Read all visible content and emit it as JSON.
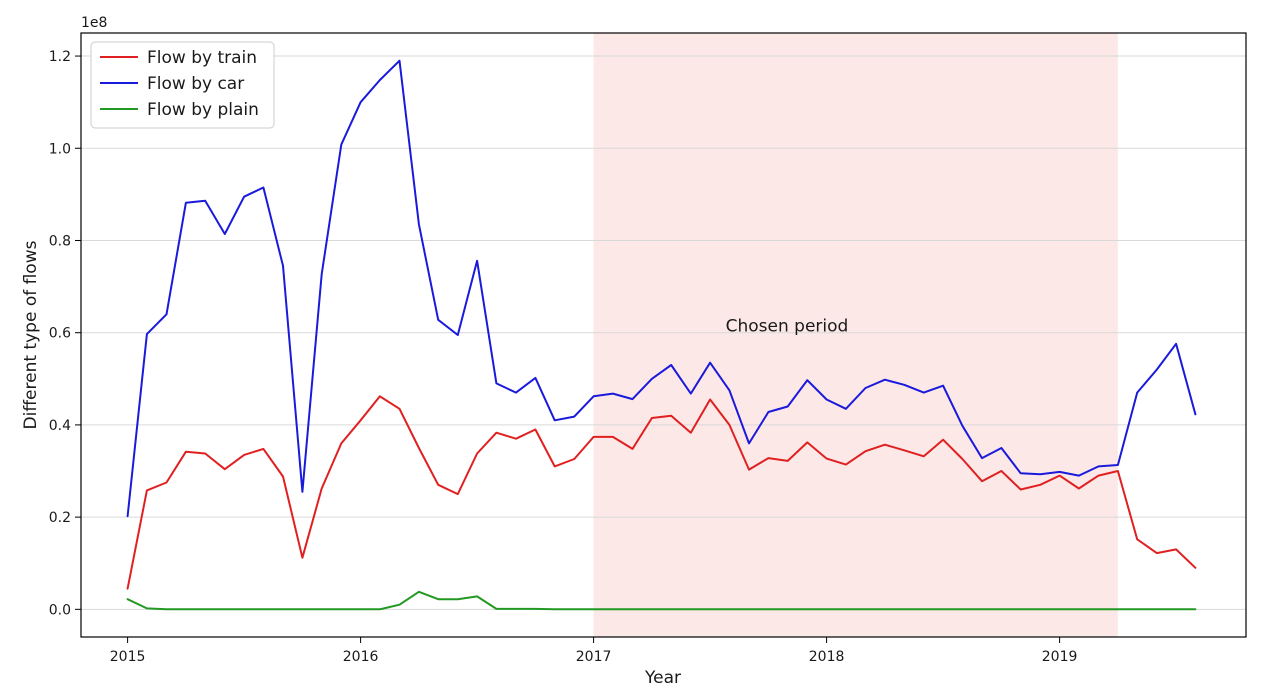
{
  "chart_data": {
    "type": "line",
    "xlabel": "Year",
    "ylabel": "Different type of flows",
    "y_scale_label": "1e8",
    "xlim": [
      2014.8,
      2019.8
    ],
    "ylim": [
      -0.06,
      1.25
    ],
    "x_ticks": [
      2015,
      2016,
      2017,
      2018,
      2019
    ],
    "x_tick_labels": [
      "2015",
      "2016",
      "2017",
      "2018",
      "2019"
    ],
    "y_ticks": [
      0.0,
      0.2,
      0.4,
      0.6,
      0.8,
      1.0,
      1.2
    ],
    "y_tick_labels": [
      "0.0",
      "0.2",
      "0.4",
      "0.6",
      "0.8",
      "1.0",
      "1.2"
    ],
    "grid": "horizontal",
    "legend_position": "top-left",
    "highlight": {
      "x_start": 2017.0,
      "x_end": 2019.25,
      "color": "#fde8e8"
    },
    "annotations": [
      {
        "text": "Chosen period",
        "x": 2017.83,
        "y": 0.6
      }
    ],
    "x": [
      2015.0,
      2015.083,
      2015.167,
      2015.25,
      2015.333,
      2015.417,
      2015.5,
      2015.583,
      2015.667,
      2015.75,
      2015.833,
      2015.917,
      2016.0,
      2016.083,
      2016.167,
      2016.25,
      2016.333,
      2016.417,
      2016.5,
      2016.583,
      2016.667,
      2016.75,
      2016.833,
      2016.917,
      2017.0,
      2017.083,
      2017.167,
      2017.25,
      2017.333,
      2017.417,
      2017.5,
      2017.583,
      2017.667,
      2017.75,
      2017.833,
      2017.917,
      2018.0,
      2018.083,
      2018.167,
      2018.25,
      2018.333,
      2018.417,
      2018.5,
      2018.583,
      2018.667,
      2018.75,
      2018.833,
      2018.917,
      2019.0,
      2019.083,
      2019.167,
      2019.25,
      2019.333,
      2019.417,
      2019.5,
      2019.583
    ],
    "series": [
      {
        "name": "Flow by train",
        "color": "#e02020",
        "values": [
          0.045,
          0.258,
          0.275,
          0.342,
          0.338,
          0.304,
          0.335,
          0.348,
          0.288,
          0.112,
          0.262,
          0.36,
          0.41,
          0.462,
          0.435,
          0.35,
          0.27,
          0.25,
          0.338,
          0.383,
          0.37,
          0.39,
          0.31,
          0.326,
          0.374,
          0.374,
          0.348,
          0.415,
          0.42,
          0.383,
          0.455,
          0.4,
          0.303,
          0.328,
          0.322,
          0.362,
          0.327,
          0.314,
          0.343,
          0.357,
          0.345,
          0.332,
          0.368,
          0.326,
          0.278,
          0.3,
          0.26,
          0.27,
          0.29,
          0.262,
          0.29,
          0.3,
          0.152,
          0.122,
          0.13,
          0.09
        ]
      },
      {
        "name": "Flow by car",
        "color": "#1a1adc",
        "values": [
          0.202,
          0.597,
          0.64,
          0.882,
          0.886,
          0.814,
          0.895,
          0.915,
          0.745,
          0.255,
          0.727,
          1.008,
          1.1,
          1.148,
          1.19,
          0.835,
          0.628,
          0.595,
          0.756,
          0.49,
          0.47,
          0.502,
          0.41,
          0.418,
          0.462,
          0.468,
          0.456,
          0.5,
          0.53,
          0.468,
          0.535,
          0.475,
          0.36,
          0.428,
          0.44,
          0.497,
          0.455,
          0.435,
          0.48,
          0.498,
          0.487,
          0.47,
          0.485,
          0.398,
          0.328,
          0.35,
          0.295,
          0.293,
          0.298,
          0.29,
          0.31,
          0.313,
          0.47,
          0.52,
          0.576,
          0.423
        ]
      },
      {
        "name": "Flow by plain",
        "color": "#229922",
        "values": [
          0.022,
          0.002,
          0.0,
          0.0,
          0.0,
          0.0,
          0.0,
          0.0,
          0.0,
          0.0,
          0.0,
          0.0,
          0.0,
          0.0,
          0.01,
          0.038,
          0.022,
          0.022,
          0.028,
          0.001,
          0.001,
          0.001,
          0.0,
          0.0,
          0.0,
          0.0,
          0.0,
          0.0,
          0.0,
          0.0,
          0.0,
          0.0,
          0.0,
          0.0,
          0.0,
          0.0,
          0.0,
          0.0,
          0.0,
          0.0,
          0.0,
          0.0,
          0.0,
          0.0,
          0.0,
          0.0,
          0.0,
          0.0,
          0.0,
          0.0,
          0.0,
          0.0,
          0.0,
          0.0,
          0.0,
          0.0
        ]
      }
    ]
  }
}
